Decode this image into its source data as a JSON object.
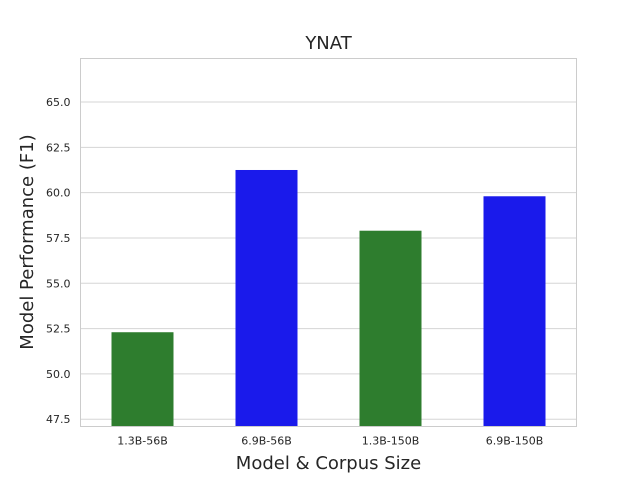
{
  "chart_data": {
    "type": "bar",
    "title": "YNAT",
    "xlabel": "Model & Corpus Size",
    "ylabel": "Model Performance (F1)",
    "categories": [
      "1.3B-56B",
      "6.9B-56B",
      "1.3B-150B",
      "6.9B-150B"
    ],
    "values": [
      52.3,
      61.25,
      57.9,
      59.8
    ],
    "colors": [
      "#2e7d2e",
      "#1a1aeb",
      "#2e7d2e",
      "#1a1aeb"
    ],
    "ylim": [
      47.1,
      67.4
    ],
    "yticks": [
      "47.5",
      "50.0",
      "52.5",
      "55.0",
      "57.5",
      "60.0",
      "62.5",
      "65.0"
    ],
    "grid": "horizontal",
    "legend": "none"
  }
}
